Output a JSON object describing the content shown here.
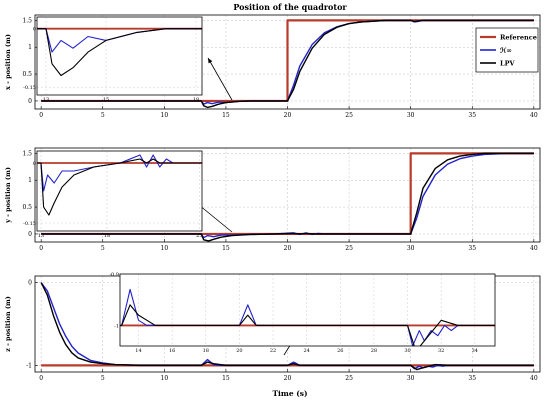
{
  "figure_title": "Position of the quadrotor",
  "xlabel_bottom": "Time (s)",
  "legend": [
    {
      "label": "Reference",
      "color": "#b83a2a"
    },
    {
      "label": "ℋ∞",
      "color": "#2222cc"
    },
    {
      "label": "LPV",
      "color": "#000000"
    }
  ],
  "chart_data": [
    {
      "type": "line",
      "title": "Position of the quadrotor",
      "ylabel": "x - position (m)",
      "xlim": [
        -0.5,
        40.5
      ],
      "ylim": [
        -0.15,
        1.6
      ],
      "xticks": [
        0,
        5,
        10,
        15,
        20,
        25,
        30,
        35,
        40
      ],
      "yticks": [
        0,
        0.5,
        1,
        1.5
      ],
      "ytick_labels": [
        "0",
        "0.5",
        "1",
        "1.5"
      ],
      "grid": true,
      "legend_position": "top-right",
      "series": [
        {
          "name": "Reference",
          "x": [
            0,
            20,
            20,
            40
          ],
          "y": [
            0,
            0,
            1.5,
            1.5
          ]
        },
        {
          "name": "ℋ∞",
          "x": [
            0,
            13,
            13.2,
            13.5,
            13.9,
            14.4,
            15,
            16,
            17,
            20,
            20.5,
            21,
            22,
            23,
            24,
            25,
            26,
            28,
            30,
            30.3,
            30.6,
            31,
            40
          ],
          "y": [
            0,
            0,
            -0.06,
            -0.03,
            -0.05,
            -0.02,
            -0.03,
            -0.01,
            0,
            0,
            0.3,
            0.65,
            1.05,
            1.27,
            1.38,
            1.44,
            1.47,
            1.5,
            1.5,
            1.47,
            1.48,
            1.5,
            1.5
          ]
        },
        {
          "name": "LPV",
          "x": [
            0,
            13,
            13.2,
            13.5,
            13.9,
            14.4,
            15,
            16,
            17,
            20,
            20.5,
            21,
            22,
            23,
            24,
            25,
            26,
            28,
            30,
            30.3,
            30.6,
            31,
            40
          ],
          "y": [
            0,
            0,
            -0.09,
            -0.12,
            -0.1,
            -0.06,
            -0.03,
            -0.01,
            0,
            0,
            0.22,
            0.55,
            0.98,
            1.24,
            1.37,
            1.44,
            1.47,
            1.5,
            1.5,
            1.48,
            1.49,
            1.5,
            1.5
          ]
        }
      ],
      "inset": {
        "xlim": [
          12.7,
          18.2
        ],
        "ylim": [
          -0.17,
          0.03
        ],
        "xticks": [
          13,
          15,
          18
        ],
        "yticks": [
          -0.15,
          0
        ],
        "ytick_labels": [
          "-0.15",
          "0"
        ]
      }
    },
    {
      "type": "line",
      "ylabel": "y - position (m)",
      "xlim": [
        -0.5,
        40.5
      ],
      "ylim": [
        -0.15,
        1.6
      ],
      "xticks": [
        0,
        5,
        10,
        15,
        20,
        25,
        30,
        35,
        40
      ],
      "yticks": [
        0,
        0.5,
        1,
        1.5
      ],
      "ytick_labels": [
        "0",
        "0.5",
        "1",
        "1.5"
      ],
      "grid": true,
      "series": [
        {
          "name": "Reference",
          "x": [
            0,
            30,
            30,
            40
          ],
          "y": [
            0,
            0,
            1.5,
            1.5
          ]
        },
        {
          "name": "ℋ∞",
          "x": [
            0,
            13,
            13.2,
            13.5,
            14,
            14.6,
            15.5,
            17,
            19,
            20.5,
            21,
            21.5,
            22,
            22.5,
            23,
            24,
            25,
            30,
            30.5,
            31,
            32,
            33,
            34,
            35,
            36,
            38,
            40
          ],
          "y": [
            0,
            0,
            -0.07,
            -0.03,
            -0.05,
            -0.02,
            -0.02,
            -0.01,
            0,
            0.02,
            -0.01,
            0.02,
            -0.01,
            0.01,
            0,
            0,
            0,
            0,
            0.3,
            0.7,
            1.1,
            1.3,
            1.4,
            1.45,
            1.48,
            1.5,
            1.5
          ]
        },
        {
          "name": "LPV",
          "x": [
            0,
            13,
            13.2,
            13.6,
            14,
            14.6,
            15.5,
            17,
            19,
            20.5,
            21,
            21.5,
            22,
            23,
            25,
            30,
            30.5,
            31,
            32,
            33,
            34,
            35,
            36,
            38,
            40
          ],
          "y": [
            0,
            0,
            -0.11,
            -0.13,
            -0.1,
            -0.06,
            -0.03,
            -0.01,
            0,
            0.01,
            0,
            0.01,
            0,
            0,
            0,
            0,
            0.4,
            0.85,
            1.22,
            1.38,
            1.45,
            1.48,
            1.5,
            1.5,
            1.5
          ]
        }
      ],
      "inset": {
        "xlim": [
          12.7,
          25.2
        ],
        "ylim": [
          -0.17,
          0.03
        ],
        "xticks": [
          13,
          18,
          25
        ],
        "yticks": [
          -0.15,
          0
        ],
        "ytick_labels": [
          "-0.15",
          "0"
        ]
      }
    },
    {
      "type": "line",
      "ylabel": "z - position (m)",
      "xlabel": "Time (s)",
      "xlim": [
        -0.5,
        40.5
      ],
      "ylim": [
        -1.08,
        0.08
      ],
      "xticks": [
        0,
        5,
        10,
        15,
        20,
        25,
        30,
        35,
        40
      ],
      "yticks": [
        -1,
        0
      ],
      "ytick_labels": [
        "-1",
        "0"
      ],
      "grid": true,
      "series": [
        {
          "name": "Reference",
          "x": [
            0,
            40
          ],
          "y": [
            -1,
            -1
          ]
        },
        {
          "name": "ℋ∞",
          "x": [
            0,
            0.5,
            1,
            1.5,
            2,
            2.5,
            3,
            4,
            5,
            6,
            8,
            10,
            13,
            13.5,
            14,
            14.5,
            20,
            20.5,
            21,
            21.5,
            30,
            30.3,
            30.7,
            31,
            31.4,
            31.8,
            32.2,
            32.6,
            33,
            34,
            40
          ],
          "y": [
            0,
            -0.1,
            -0.3,
            -0.5,
            -0.65,
            -0.77,
            -0.85,
            -0.94,
            -0.97,
            -0.99,
            -1,
            -1,
            -1,
            -0.93,
            -0.99,
            -1,
            -1,
            -0.96,
            -1,
            -1,
            -1,
            -1.04,
            -1.01,
            -1.03,
            -1.01,
            -1.02,
            -1.0,
            -1.01,
            -1,
            -1,
            -1
          ]
        },
        {
          "name": "LPV",
          "x": [
            0,
            0.5,
            1,
            1.5,
            2,
            2.5,
            3,
            4,
            5,
            6,
            8,
            10,
            13,
            13.5,
            14,
            15,
            20,
            20.5,
            21,
            22,
            30,
            30.5,
            31,
            32,
            33,
            34,
            40
          ],
          "y": [
            0,
            -0.15,
            -0.4,
            -0.6,
            -0.75,
            -0.85,
            -0.91,
            -0.96,
            -0.98,
            -0.99,
            -1,
            -1,
            -1,
            -0.96,
            -0.98,
            -1,
            -1,
            -0.98,
            -1,
            -1,
            -1,
            -1.05,
            -1.03,
            -0.99,
            -1,
            -1,
            -1
          ]
        }
      ],
      "inset": {
        "xlim": [
          12.9,
          35.2
        ],
        "ylim": [
          -1.04,
          -0.9
        ],
        "xticks": [
          14,
          16,
          18,
          20,
          22,
          24,
          26,
          28,
          30,
          32,
          34
        ],
        "yticks": [
          -0.9,
          -1
        ],
        "ytick_labels": [
          "-0.9",
          "-1"
        ]
      }
    }
  ]
}
